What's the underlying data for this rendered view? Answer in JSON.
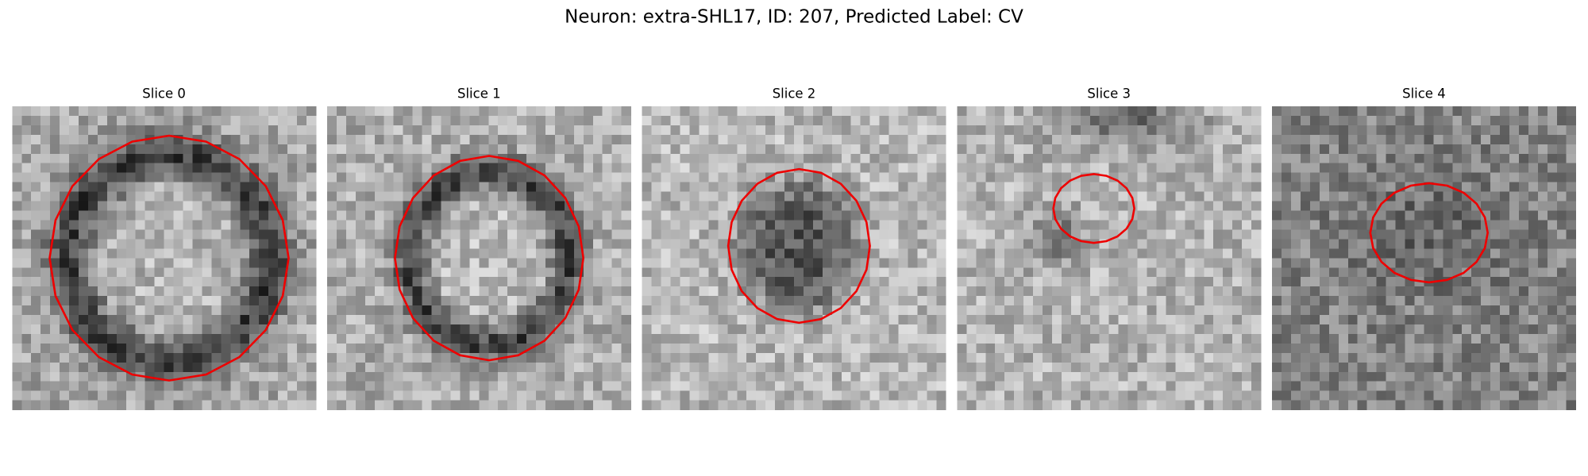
{
  "title": "Neuron: extra-SHL17, ID: 207, Predicted Label: CV",
  "panels": [
    {
      "title": "Slice 0"
    },
    {
      "title": "Slice 1"
    },
    {
      "title": "Slice 2"
    },
    {
      "title": "Slice 3"
    },
    {
      "title": "Slice 4"
    }
  ]
}
